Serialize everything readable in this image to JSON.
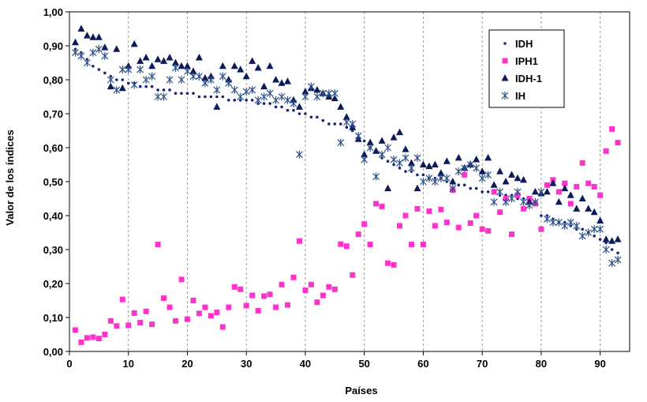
{
  "chart_data": {
    "type": "scatter",
    "title": "",
    "xlabel": "Países",
    "ylabel": "Valor de los índices",
    "xlim": [
      0,
      95
    ],
    "ylim": [
      0,
      1
    ],
    "xticks": [
      0,
      10,
      20,
      30,
      40,
      50,
      60,
      70,
      80,
      90
    ],
    "yticks": [
      0,
      0.1,
      0.2,
      0.3,
      0.4,
      0.5,
      0.6,
      0.7,
      0.8,
      0.9,
      1.0
    ],
    "xtick_labels": [
      "0",
      "10",
      "20",
      "30",
      "40",
      "50",
      "60",
      "70",
      "80",
      "90"
    ],
    "ytick_labels": [
      "0,00",
      "0,10",
      "0,20",
      "0,30",
      "0,40",
      "0,50",
      "0,60",
      "0,70",
      "0,80",
      "0,90",
      "1,00"
    ],
    "grid": "vertical-dashed",
    "legend_position": "top-right",
    "series": [
      {
        "name": "IDH",
        "marker": "dot",
        "color": "#1a237e",
        "y": [
          0.89,
          0.88,
          0.86,
          0.84,
          0.83,
          0.82,
          0.81,
          0.8,
          0.8,
          0.79,
          0.79,
          0.78,
          0.78,
          0.78,
          0.77,
          0.77,
          0.77,
          0.76,
          0.76,
          0.76,
          0.76,
          0.75,
          0.75,
          0.75,
          0.75,
          0.75,
          0.74,
          0.74,
          0.74,
          0.74,
          0.74,
          0.73,
          0.73,
          0.73,
          0.72,
          0.72,
          0.71,
          0.71,
          0.7,
          0.7,
          0.69,
          0.69,
          0.68,
          0.67,
          0.67,
          0.67,
          0.66,
          0.65,
          0.63,
          0.62,
          0.6,
          0.59,
          0.57,
          0.56,
          0.55,
          0.54,
          0.53,
          0.53,
          0.52,
          0.52,
          0.51,
          0.51,
          0.51,
          0.5,
          0.5,
          0.49,
          0.49,
          0.48,
          0.48,
          0.47,
          0.47,
          0.47,
          0.46,
          0.46,
          0.46,
          0.45,
          0.45,
          0.45,
          0.44,
          0.4,
          0.4,
          0.39,
          0.38,
          0.38,
          0.37,
          0.36,
          0.36,
          0.35,
          0.34,
          0.33,
          0.32,
          0.3,
          0.29
        ]
      },
      {
        "name": "IPH1",
        "marker": "square",
        "color": "#ff33cc",
        "y": [
          0.063,
          0.027,
          0.04,
          0.042,
          0.038,
          0.05,
          0.09,
          0.075,
          0.153,
          0.077,
          0.113,
          0.085,
          0.118,
          0.08,
          0.315,
          0.157,
          0.13,
          0.09,
          0.212,
          0.095,
          0.15,
          0.112,
          0.13,
          0.105,
          0.115,
          0.072,
          0.13,
          0.19,
          0.183,
          0.135,
          0.165,
          0.12,
          0.163,
          0.168,
          0.13,
          0.197,
          0.137,
          0.218,
          0.325,
          0.18,
          0.197,
          0.145,
          0.165,
          0.19,
          0.183,
          0.316,
          0.31,
          0.225,
          0.345,
          0.375,
          0.315,
          0.435,
          0.427,
          0.26,
          0.255,
          0.37,
          0.4,
          0.315,
          0.42,
          0.315,
          0.413,
          0.37,
          0.418,
          0.38,
          0.475,
          0.365,
          0.52,
          0.378,
          0.4,
          0.36,
          0.355,
          0.47,
          0.41,
          0.45,
          0.345,
          0.46,
          0.42,
          0.45,
          0.435,
          0.36,
          0.49,
          0.505,
          0.47,
          0.495,
          0.435,
          0.485,
          0.555,
          0.495,
          0.485,
          0.46,
          0.59,
          0.655,
          0.615
        ]
      },
      {
        "name": "IDH-1",
        "marker": "triangle",
        "color": "#0d1a5a",
        "y": [
          0.91,
          0.95,
          0.93,
          0.925,
          0.925,
          0.895,
          0.78,
          0.89,
          0.775,
          0.84,
          0.905,
          0.855,
          0.865,
          0.84,
          0.86,
          0.855,
          0.865,
          0.85,
          0.84,
          0.84,
          0.825,
          0.865,
          0.805,
          0.81,
          0.72,
          0.84,
          0.8,
          0.84,
          0.83,
          0.81,
          0.855,
          0.835,
          0.78,
          0.84,
          0.8,
          0.79,
          0.795,
          0.74,
          0.72,
          0.765,
          0.775,
          0.77,
          0.76,
          0.75,
          0.745,
          0.72,
          0.69,
          0.66,
          0.625,
          0.58,
          0.615,
          0.59,
          0.62,
          0.48,
          0.63,
          0.645,
          0.595,
          0.555,
          0.48,
          0.55,
          0.545,
          0.55,
          0.525,
          0.56,
          0.5,
          0.57,
          0.54,
          0.55,
          0.565,
          0.53,
          0.57,
          0.49,
          0.53,
          0.5,
          0.52,
          0.51,
          0.505,
          0.44,
          0.47,
          0.465,
          0.47,
          0.495,
          0.44,
          0.48,
          0.46,
          0.42,
          0.45,
          0.42,
          0.41,
          0.385,
          0.33,
          0.325,
          0.33
        ]
      },
      {
        "name": "IH",
        "marker": "asterisk",
        "color": "#2b4f8a",
        "y": [
          0.88,
          0.87,
          0.85,
          0.88,
          0.89,
          0.87,
          0.8,
          0.77,
          0.83,
          0.83,
          0.785,
          0.83,
          0.8,
          0.81,
          0.75,
          0.75,
          0.8,
          0.835,
          0.8,
          0.825,
          0.81,
          0.81,
          0.79,
          0.8,
          0.77,
          0.81,
          0.79,
          0.77,
          0.75,
          0.765,
          0.77,
          0.74,
          0.75,
          0.76,
          0.74,
          0.75,
          0.74,
          0.73,
          0.58,
          0.75,
          0.78,
          0.75,
          0.76,
          0.76,
          0.76,
          0.615,
          0.675,
          0.67,
          0.635,
          0.565,
          0.6,
          0.515,
          0.58,
          0.6,
          0.565,
          0.555,
          0.57,
          0.54,
          0.57,
          0.5,
          0.51,
          0.5,
          0.51,
          0.51,
          0.48,
          0.53,
          0.54,
          0.55,
          0.54,
          0.51,
          0.52,
          0.44,
          0.47,
          0.44,
          0.45,
          0.47,
          0.44,
          0.43,
          0.44,
          0.47,
          0.39,
          0.38,
          0.38,
          0.37,
          0.38,
          0.37,
          0.34,
          0.35,
          0.36,
          0.36,
          0.3,
          0.26,
          0.27
        ]
      }
    ]
  }
}
